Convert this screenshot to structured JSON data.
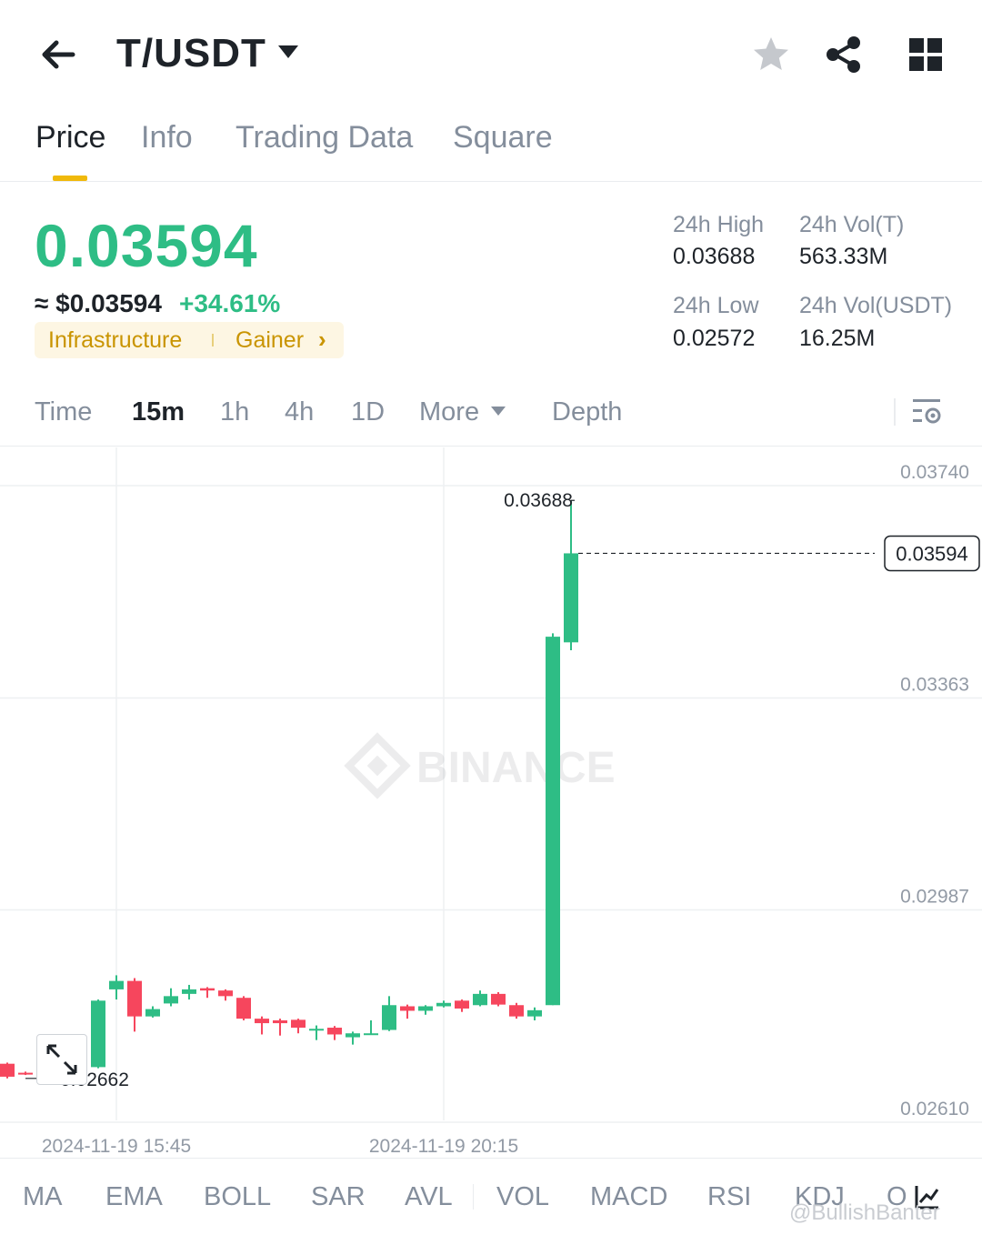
{
  "header": {
    "pair": "T/USDT",
    "icons": [
      "back-arrow-icon",
      "star-icon",
      "share-icon",
      "grid-menu-icon"
    ]
  },
  "tabs": [
    "Price",
    "Info",
    "Trading Data",
    "Square"
  ],
  "active_tab": "Price",
  "price": {
    "last": "0.03594",
    "usd": "≈ $0.03594",
    "change": "+34.61%",
    "tag_category": "Infrastructure",
    "tag_status": "Gainer",
    "color_up": "#2ebd85",
    "color_down": "#f6465d"
  },
  "stats": {
    "high_label": "24h High",
    "high_value": "0.03688",
    "low_label": "24h Low",
    "low_value": "0.02572",
    "vol_t_label": "24h Vol(T)",
    "vol_t_value": "563.33M",
    "vol_usdt_label": "24h Vol(USDT)",
    "vol_usdt_value": "16.25M"
  },
  "timebar": {
    "items": [
      "Time",
      "15m",
      "1h",
      "4h",
      "1D",
      "More",
      "Depth"
    ],
    "active": "15m"
  },
  "chart_data": {
    "type": "candlestick",
    "y_ticks": [
      "0.03740",
      "0.03363",
      "0.02987",
      "0.02610"
    ],
    "x_ticks": [
      "2024-11-19 15:45",
      "2024-11-19 20:15"
    ],
    "ylim": [
      0.0255,
      0.038
    ],
    "current_price_label": "0.03594",
    "current_price": 0.03594,
    "high_label": "0.03688",
    "high": 0.03688,
    "low_label": "0.02662",
    "low": 0.02662,
    "watermark": "BINANCE",
    "candles": [
      {
        "o": 0.02688,
        "h": 0.0269,
        "l": 0.02662,
        "c": 0.02665
      },
      {
        "o": 0.02672,
        "h": 0.02674,
        "l": 0.02668,
        "c": 0.0267
      },
      {
        "o": 0.02668,
        "h": 0.02676,
        "l": 0.02664,
        "c": 0.02673
      },
      {
        "o": 0.02695,
        "h": 0.02698,
        "l": 0.02676,
        "c": 0.0268
      },
      {
        "o": 0.02685,
        "h": 0.02686,
        "l": 0.02678,
        "c": 0.0268
      },
      {
        "o": 0.02682,
        "h": 0.02802,
        "l": 0.0268,
        "c": 0.028
      },
      {
        "o": 0.0282,
        "h": 0.02845,
        "l": 0.02802,
        "c": 0.02835
      },
      {
        "o": 0.02835,
        "h": 0.0284,
        "l": 0.02745,
        "c": 0.02772
      },
      {
        "o": 0.02772,
        "h": 0.0279,
        "l": 0.0277,
        "c": 0.02785
      },
      {
        "o": 0.02795,
        "h": 0.02822,
        "l": 0.0279,
        "c": 0.02808
      },
      {
        "o": 0.02812,
        "h": 0.02828,
        "l": 0.02802,
        "c": 0.0282
      },
      {
        "o": 0.02822,
        "h": 0.02824,
        "l": 0.02805,
        "c": 0.02818
      },
      {
        "o": 0.02818,
        "h": 0.0282,
        "l": 0.028,
        "c": 0.02808
      },
      {
        "o": 0.02805,
        "h": 0.02808,
        "l": 0.02765,
        "c": 0.02768
      },
      {
        "o": 0.02768,
        "h": 0.02772,
        "l": 0.0274,
        "c": 0.0276
      },
      {
        "o": 0.02765,
        "h": 0.02768,
        "l": 0.02738,
        "c": 0.0276
      },
      {
        "o": 0.02766,
        "h": 0.02768,
        "l": 0.02742,
        "c": 0.02752
      },
      {
        "o": 0.02748,
        "h": 0.02756,
        "l": 0.0273,
        "c": 0.0275
      },
      {
        "o": 0.02752,
        "h": 0.02755,
        "l": 0.0273,
        "c": 0.0274
      },
      {
        "o": 0.02735,
        "h": 0.02745,
        "l": 0.02722,
        "c": 0.02742
      },
      {
        "o": 0.02742,
        "h": 0.02765,
        "l": 0.0274,
        "c": 0.02742
      },
      {
        "o": 0.02748,
        "h": 0.02808,
        "l": 0.02746,
        "c": 0.02792
      },
      {
        "o": 0.0279,
        "h": 0.02793,
        "l": 0.02768,
        "c": 0.02782
      },
      {
        "o": 0.02782,
        "h": 0.02792,
        "l": 0.02775,
        "c": 0.0279
      },
      {
        "o": 0.0279,
        "h": 0.028,
        "l": 0.02788,
        "c": 0.02796
      },
      {
        "o": 0.028,
        "h": 0.02802,
        "l": 0.0278,
        "c": 0.02786
      },
      {
        "o": 0.02792,
        "h": 0.02818,
        "l": 0.0279,
        "c": 0.02812
      },
      {
        "o": 0.02812,
        "h": 0.02815,
        "l": 0.0279,
        "c": 0.02793
      },
      {
        "o": 0.02792,
        "h": 0.02796,
        "l": 0.02768,
        "c": 0.02772
      },
      {
        "o": 0.02772,
        "h": 0.02788,
        "l": 0.02765,
        "c": 0.02783
      },
      {
        "o": 0.02792,
        "h": 0.03452,
        "l": 0.02792,
        "c": 0.03446
      },
      {
        "o": 0.03436,
        "h": 0.03688,
        "l": 0.03422,
        "c": 0.03594
      }
    ]
  },
  "indicators": [
    "MA",
    "EMA",
    "BOLL",
    "SAR",
    "AVL",
    "VOL",
    "MACD",
    "RSI",
    "KDJ",
    "O"
  ],
  "watermark_user": "@BullishBanter"
}
